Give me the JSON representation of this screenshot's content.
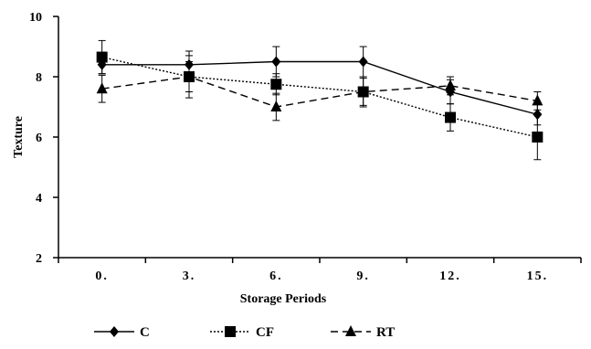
{
  "chart_data": {
    "type": "line",
    "categories": [
      "0.",
      "3.",
      "6.",
      "9.",
      "12.",
      "15."
    ],
    "xlabel": "Storage Periods",
    "ylabel": "Texture",
    "ylim": [
      2,
      10
    ],
    "yticks": [
      2,
      4,
      6,
      8,
      10
    ],
    "grid": false,
    "legend_position": "bottom",
    "series": [
      {
        "name": "C",
        "values": [
          8.4,
          8.4,
          8.5,
          8.5,
          7.5,
          6.75
        ],
        "errors": [
          0.3,
          0.45,
          0.5,
          0.5,
          0.4,
          0.35
        ],
        "marker": "diamond",
        "line_style": "solid",
        "color": "#000000"
      },
      {
        "name": "CF",
        "values": [
          8.65,
          8.0,
          7.75,
          7.5,
          6.65,
          6.0
        ],
        "errors": [
          0.55,
          0.7,
          0.35,
          0.5,
          0.45,
          0.75
        ],
        "marker": "square",
        "line_style": "dotted",
        "color": "#000000"
      },
      {
        "name": "RT",
        "values": [
          7.6,
          8.0,
          7.0,
          7.5,
          7.7,
          7.2
        ],
        "errors": [
          0.45,
          0.5,
          0.45,
          0.45,
          0.3,
          0.3
        ],
        "marker": "triangle",
        "line_style": "dashed",
        "color": "#000000"
      }
    ]
  }
}
